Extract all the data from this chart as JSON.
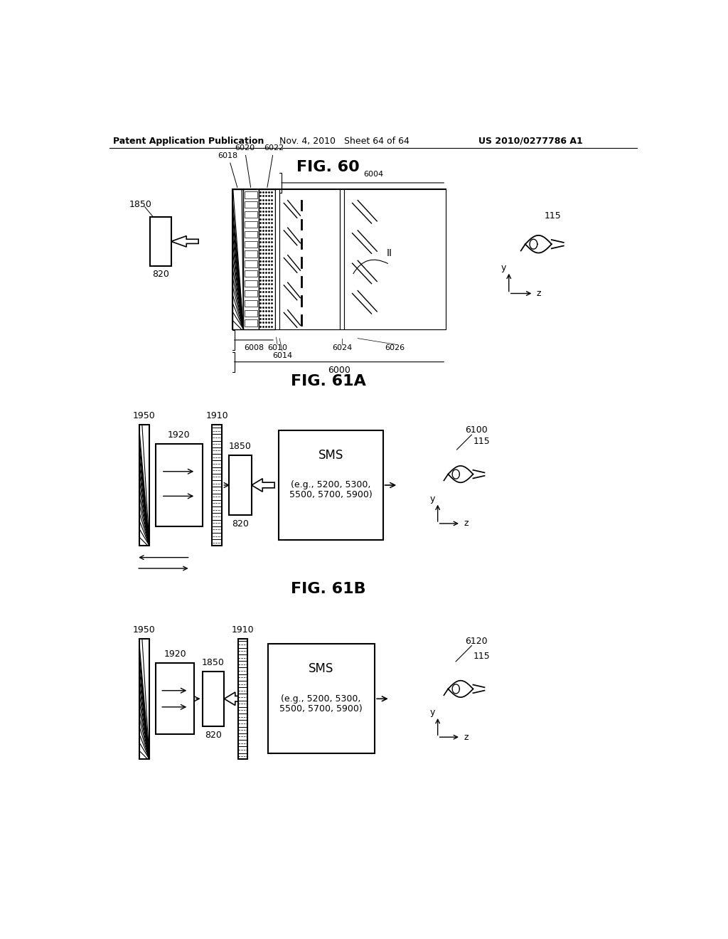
{
  "bg_color": "#ffffff",
  "header_left": "Patent Application Publication",
  "header_mid": "Nov. 4, 2010   Sheet 64 of 64",
  "header_right": "US 2010/0277786 A1"
}
